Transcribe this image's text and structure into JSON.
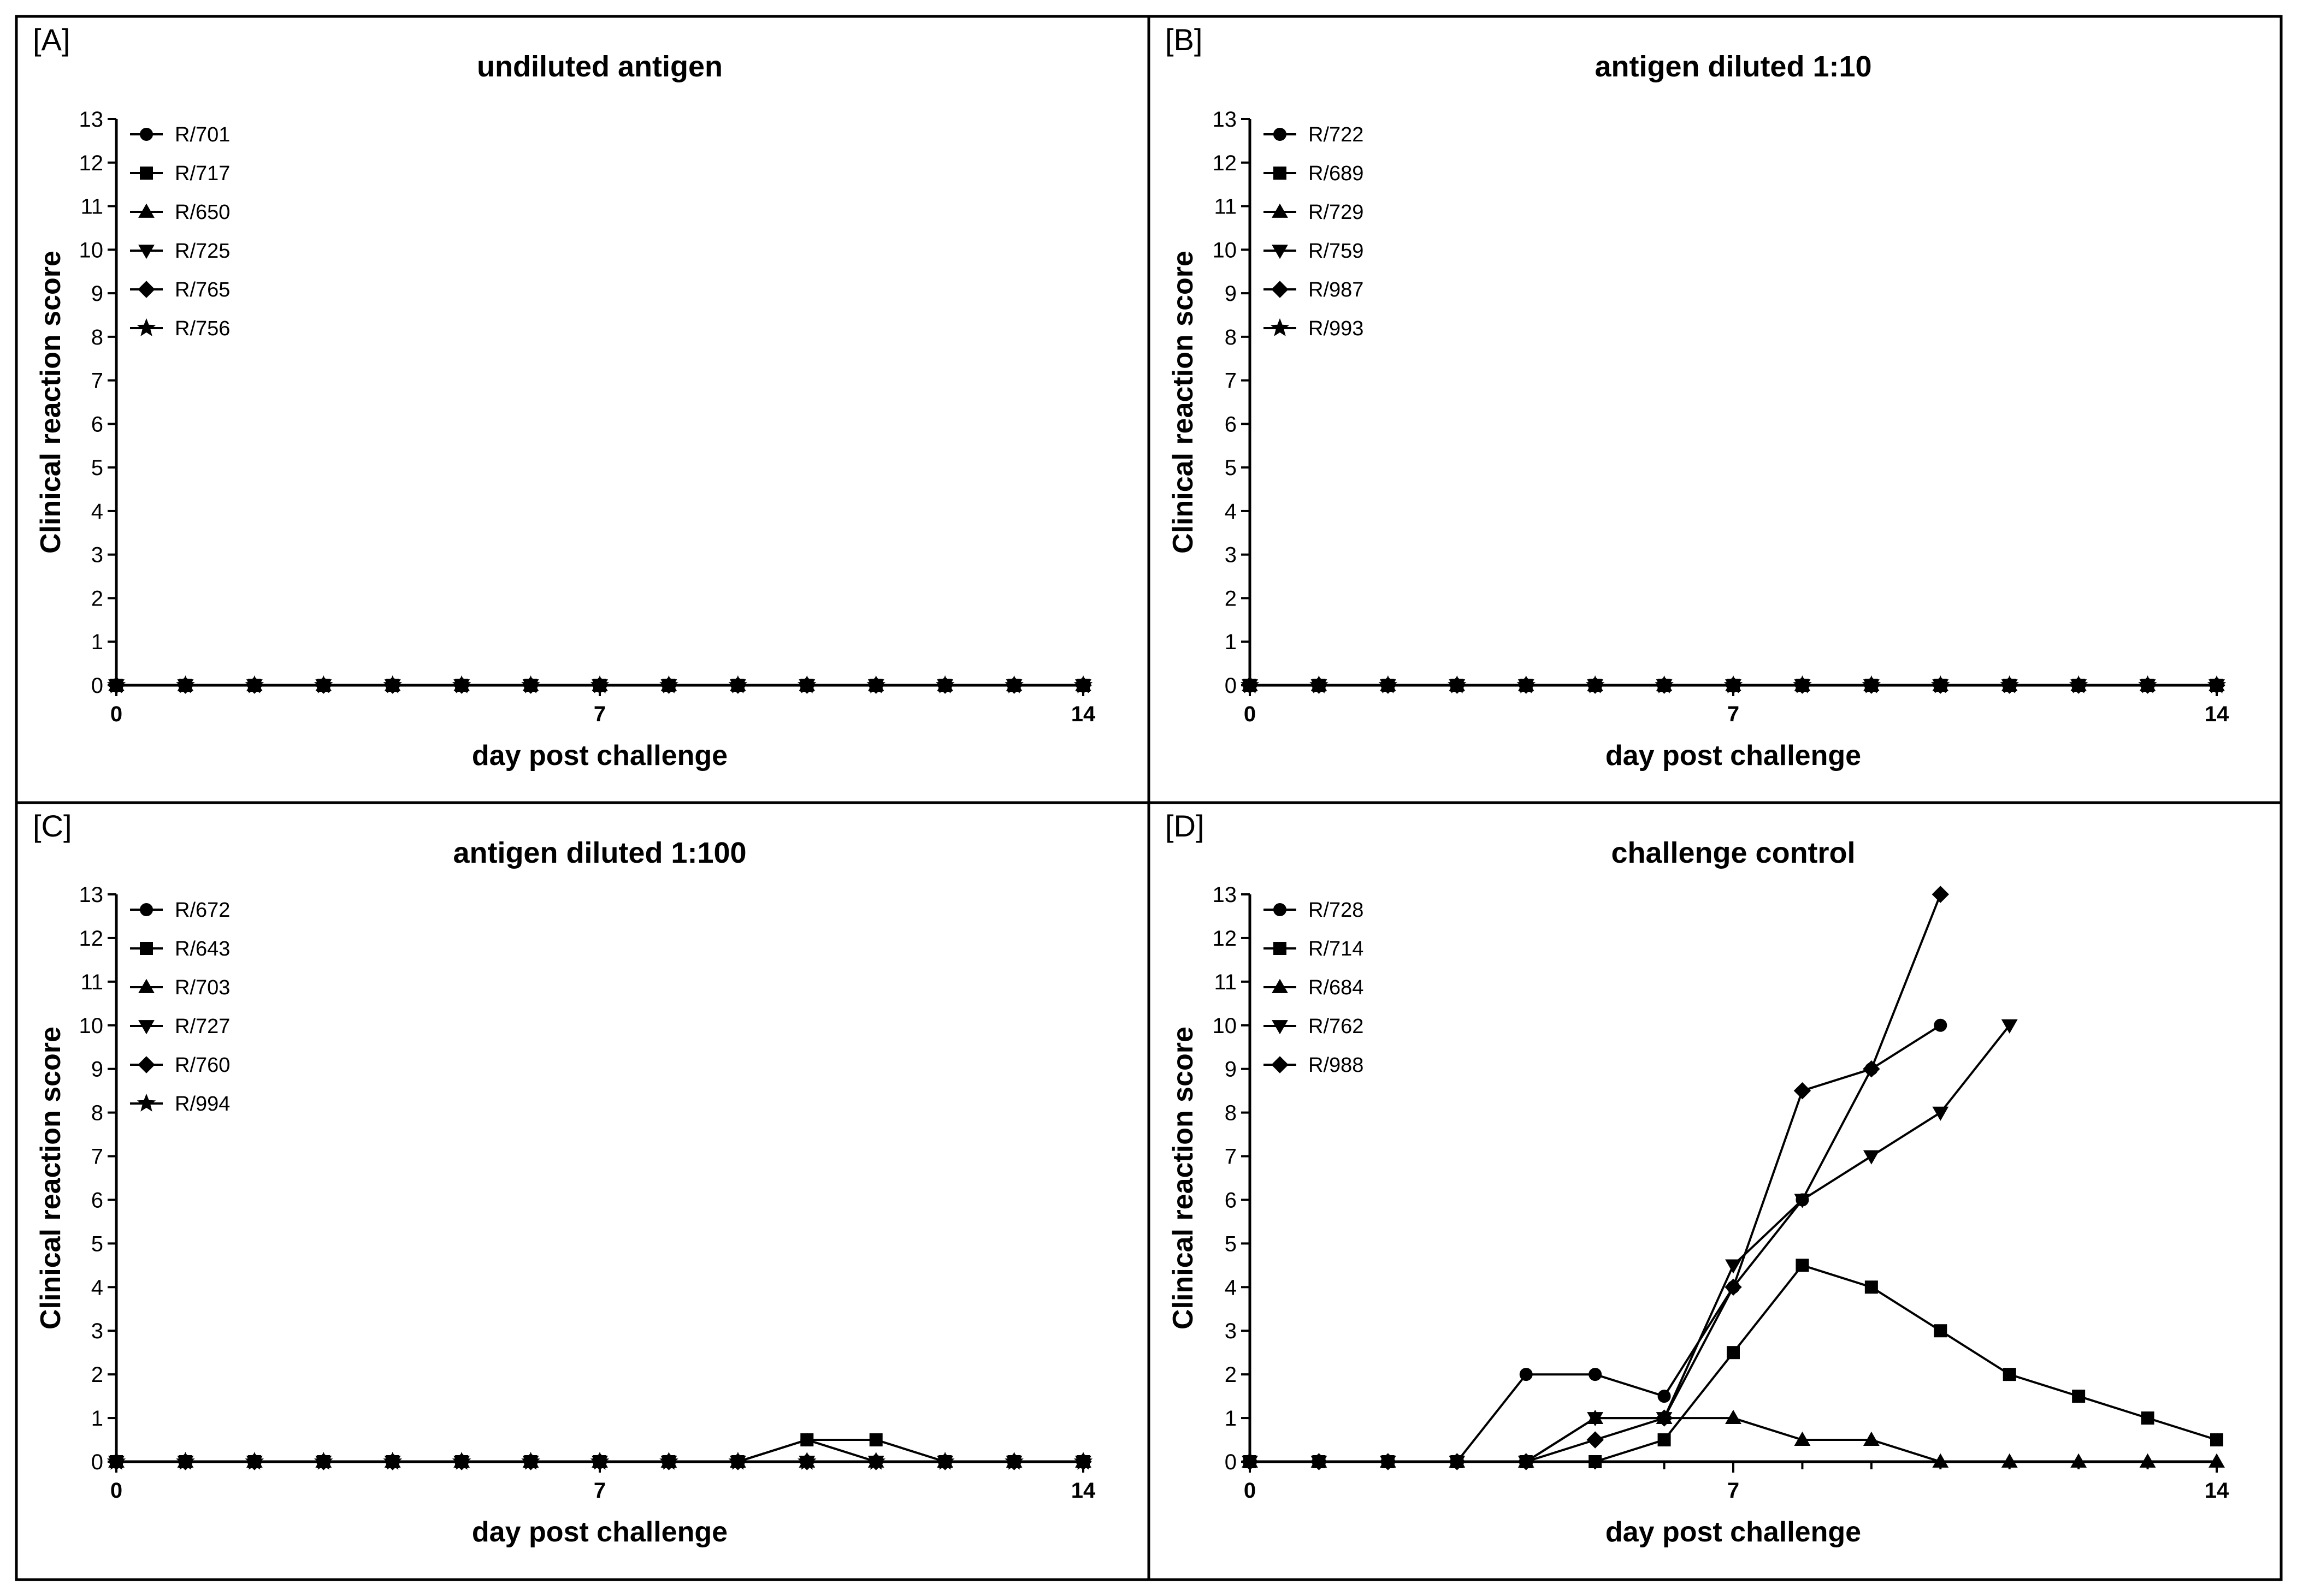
{
  "figure": {
    "background": "#ffffff",
    "line_color": "#000000"
  },
  "chart_data": [
    {
      "type": "line",
      "panel": "[A]",
      "title": "undiluted antigen",
      "xlabel": "day post challenge",
      "ylabel": "Clinical reaction score",
      "xlim": [
        0,
        14
      ],
      "ylim": [
        0,
        13
      ],
      "xticks": [
        "0",
        "7",
        "14"
      ],
      "yticks": [
        "0",
        "1",
        "2",
        "3",
        "4",
        "5",
        "6",
        "7",
        "8",
        "9",
        "10",
        "11",
        "12",
        "13"
      ],
      "legend_position": "top-left",
      "series": [
        {
          "name": "R/701",
          "marker": "circle",
          "x": [
            0,
            1,
            2,
            3,
            4,
            5,
            6,
            7,
            8,
            9,
            10,
            11,
            12,
            13,
            14
          ],
          "y": [
            0,
            0,
            0,
            0,
            0,
            0,
            0,
            0,
            0,
            0,
            0,
            0,
            0,
            0,
            0
          ]
        },
        {
          "name": "R/717",
          "marker": "square",
          "x": [
            0,
            1,
            2,
            3,
            4,
            5,
            6,
            7,
            8,
            9,
            10,
            11,
            12,
            13,
            14
          ],
          "y": [
            0,
            0,
            0,
            0,
            0,
            0,
            0,
            0,
            0,
            0,
            0,
            0,
            0,
            0,
            0
          ]
        },
        {
          "name": "R/650",
          "marker": "triangle-up",
          "x": [
            0,
            1,
            2,
            3,
            4,
            5,
            6,
            7,
            8,
            9,
            10,
            11,
            12,
            13,
            14
          ],
          "y": [
            0,
            0,
            0,
            0,
            0,
            0,
            0,
            0,
            0,
            0,
            0,
            0,
            0,
            0,
            0
          ]
        },
        {
          "name": "R/725",
          "marker": "triangle-down",
          "x": [
            0,
            1,
            2,
            3,
            4,
            5,
            6,
            7,
            8,
            9,
            10,
            11,
            12,
            13,
            14
          ],
          "y": [
            0,
            0,
            0,
            0,
            0,
            0,
            0,
            0,
            0,
            0,
            0,
            0,
            0,
            0,
            0
          ]
        },
        {
          "name": "R/765",
          "marker": "diamond",
          "x": [
            0,
            1,
            2,
            3,
            4,
            5,
            6,
            7,
            8,
            9,
            10,
            11,
            12,
            13,
            14
          ],
          "y": [
            0,
            0,
            0,
            0,
            0,
            0,
            0,
            0,
            0,
            0,
            0,
            0,
            0,
            0,
            0
          ]
        },
        {
          "name": "R/756",
          "marker": "star",
          "x": [
            0,
            1,
            2,
            3,
            4,
            5,
            6,
            7,
            8,
            9,
            10,
            11,
            12,
            13,
            14
          ],
          "y": [
            0,
            0,
            0,
            0,
            0,
            0,
            0,
            0,
            0,
            0,
            0,
            0,
            0,
            0,
            0
          ]
        }
      ]
    },
    {
      "type": "line",
      "panel": "[B]",
      "title": "antigen diluted 1:10",
      "xlabel": "day post challenge",
      "ylabel": "Clinical reaction score",
      "xlim": [
        0,
        14
      ],
      "ylim": [
        0,
        13
      ],
      "xticks": [
        "0",
        "7",
        "14"
      ],
      "yticks": [
        "0",
        "1",
        "2",
        "3",
        "4",
        "5",
        "6",
        "7",
        "8",
        "9",
        "10",
        "11",
        "12",
        "13"
      ],
      "legend_position": "top-left",
      "series": [
        {
          "name": "R/722",
          "marker": "circle",
          "x": [
            0,
            1,
            2,
            3,
            4,
            5,
            6,
            7,
            8,
            9,
            10,
            11,
            12,
            13,
            14
          ],
          "y": [
            0,
            0,
            0,
            0,
            0,
            0,
            0,
            0,
            0,
            0,
            0,
            0,
            0,
            0,
            0
          ]
        },
        {
          "name": "R/689",
          "marker": "square",
          "x": [
            0,
            1,
            2,
            3,
            4,
            5,
            6,
            7,
            8,
            9,
            10,
            11,
            12,
            13,
            14
          ],
          "y": [
            0,
            0,
            0,
            0,
            0,
            0,
            0,
            0,
            0,
            0,
            0,
            0,
            0,
            0,
            0
          ]
        },
        {
          "name": "R/729",
          "marker": "triangle-up",
          "x": [
            0,
            1,
            2,
            3,
            4,
            5,
            6,
            7,
            8,
            9,
            10,
            11,
            12,
            13,
            14
          ],
          "y": [
            0,
            0,
            0,
            0,
            0,
            0,
            0,
            0,
            0,
            0,
            0,
            0,
            0,
            0,
            0
          ]
        },
        {
          "name": "R/759",
          "marker": "triangle-down",
          "x": [
            0,
            1,
            2,
            3,
            4,
            5,
            6,
            7,
            8,
            9,
            10,
            11,
            12,
            13,
            14
          ],
          "y": [
            0,
            0,
            0,
            0,
            0,
            0,
            0,
            0,
            0,
            0,
            0,
            0,
            0,
            0,
            0
          ]
        },
        {
          "name": "R/987",
          "marker": "diamond",
          "x": [
            0,
            1,
            2,
            3,
            4,
            5,
            6,
            7,
            8,
            9,
            10,
            11,
            12,
            13,
            14
          ],
          "y": [
            0,
            0,
            0,
            0,
            0,
            0,
            0,
            0,
            0,
            0,
            0,
            0,
            0,
            0,
            0
          ]
        },
        {
          "name": "R/993",
          "marker": "star",
          "x": [
            0,
            1,
            2,
            3,
            4,
            5,
            6,
            7,
            8,
            9,
            10,
            11,
            12,
            13,
            14
          ],
          "y": [
            0,
            0,
            0,
            0,
            0,
            0,
            0,
            0,
            0,
            0,
            0,
            0,
            0,
            0,
            0
          ]
        }
      ]
    },
    {
      "type": "line",
      "panel": "[C]",
      "title": "antigen diluted 1:100",
      "xlabel": "day post challenge",
      "ylabel": "Clinical reaction score",
      "xlim": [
        0,
        14
      ],
      "ylim": [
        0,
        13
      ],
      "xticks": [
        "0",
        "7",
        "14"
      ],
      "yticks": [
        "0",
        "1",
        "2",
        "3",
        "4",
        "5",
        "6",
        "7",
        "8",
        "9",
        "10",
        "11",
        "12",
        "13"
      ],
      "legend_position": "top-left",
      "series": [
        {
          "name": "R/672",
          "marker": "circle",
          "x": [
            0,
            1,
            2,
            3,
            4,
            5,
            6,
            7,
            8,
            9,
            10,
            11,
            12,
            13,
            14
          ],
          "y": [
            0,
            0,
            0,
            0,
            0,
            0,
            0,
            0,
            0,
            0,
            0.5,
            0,
            0,
            0,
            0
          ]
        },
        {
          "name": "R/643",
          "marker": "square",
          "x": [
            0,
            1,
            2,
            3,
            4,
            5,
            6,
            7,
            8,
            9,
            10,
            11,
            12,
            13,
            14
          ],
          "y": [
            0,
            0,
            0,
            0,
            0,
            0,
            0,
            0,
            0,
            0,
            0.5,
            0.5,
            0,
            0,
            0
          ]
        },
        {
          "name": "R/703",
          "marker": "triangle-up",
          "x": [
            0,
            1,
            2,
            3,
            4,
            5,
            6,
            7,
            8,
            9,
            10,
            11,
            12,
            13,
            14
          ],
          "y": [
            0,
            0,
            0,
            0,
            0,
            0,
            0,
            0,
            0,
            0,
            0,
            0,
            0,
            0,
            0
          ]
        },
        {
          "name": "R/727",
          "marker": "triangle-down",
          "x": [
            0,
            1,
            2,
            3,
            4,
            5,
            6,
            7,
            8,
            9,
            10,
            11,
            12,
            13,
            14
          ],
          "y": [
            0,
            0,
            0,
            0,
            0,
            0,
            0,
            0,
            0,
            0,
            0,
            0,
            0,
            0,
            0
          ]
        },
        {
          "name": "R/760",
          "marker": "diamond",
          "x": [
            0,
            1,
            2,
            3,
            4,
            5,
            6,
            7,
            8,
            9,
            10,
            11,
            12,
            13,
            14
          ],
          "y": [
            0,
            0,
            0,
            0,
            0,
            0,
            0,
            0,
            0,
            0,
            0,
            0,
            0,
            0,
            0
          ]
        },
        {
          "name": "R/994",
          "marker": "star",
          "x": [
            0,
            1,
            2,
            3,
            4,
            5,
            6,
            7,
            8,
            9,
            10,
            11,
            12,
            13,
            14
          ],
          "y": [
            0,
            0,
            0,
            0,
            0,
            0,
            0,
            0,
            0,
            0,
            0,
            0,
            0,
            0,
            0
          ]
        }
      ]
    },
    {
      "type": "line",
      "panel": "[D]",
      "title": "challenge control",
      "xlabel": "day post challenge",
      "ylabel": "Clinical reaction score",
      "xlim": [
        0,
        14
      ],
      "ylim": [
        0,
        13
      ],
      "xticks": [
        "0",
        "7",
        "14"
      ],
      "yticks": [
        "0",
        "1",
        "2",
        "3",
        "4",
        "5",
        "6",
        "7",
        "8",
        "9",
        "10",
        "11",
        "12",
        "13"
      ],
      "legend_position": "top-left",
      "series": [
        {
          "name": "R/728",
          "marker": "circle",
          "x": [
            0,
            1,
            2,
            3,
            4,
            5,
            6,
            7,
            8,
            9,
            10
          ],
          "y": [
            0,
            0,
            0,
            0,
            2,
            2,
            1.5,
            4,
            6,
            9,
            10
          ]
        },
        {
          "name": "R/714",
          "marker": "square",
          "x": [
            0,
            1,
            2,
            3,
            4,
            5,
            6,
            7,
            8,
            9,
            10,
            11,
            12,
            13,
            14
          ],
          "y": [
            0,
            0,
            0,
            0,
            0,
            0,
            0.5,
            2.5,
            4.5,
            4,
            3,
            2,
            1.5,
            1,
            0.5
          ]
        },
        {
          "name": "R/684",
          "marker": "triangle-up",
          "x": [
            0,
            1,
            2,
            3,
            4,
            5,
            6,
            7,
            8,
            9,
            10,
            11,
            12,
            13,
            14
          ],
          "y": [
            0,
            0,
            0,
            0,
            0,
            1,
            1,
            1,
            0.5,
            0.5,
            0,
            0,
            0,
            0,
            0
          ]
        },
        {
          "name": "R/762",
          "marker": "triangle-down",
          "x": [
            0,
            1,
            2,
            3,
            4,
            5,
            6,
            7,
            8,
            9,
            10,
            11
          ],
          "y": [
            0,
            0,
            0,
            0,
            0,
            1,
            1,
            4.5,
            6,
            7,
            8,
            10
          ]
        },
        {
          "name": "R/988",
          "marker": "diamond",
          "x": [
            0,
            1,
            2,
            3,
            4,
            5,
            6,
            7,
            8,
            9,
            10
          ],
          "y": [
            0,
            0,
            0,
            0,
            0,
            0.5,
            1,
            4,
            8.5,
            9,
            13
          ]
        }
      ]
    }
  ]
}
